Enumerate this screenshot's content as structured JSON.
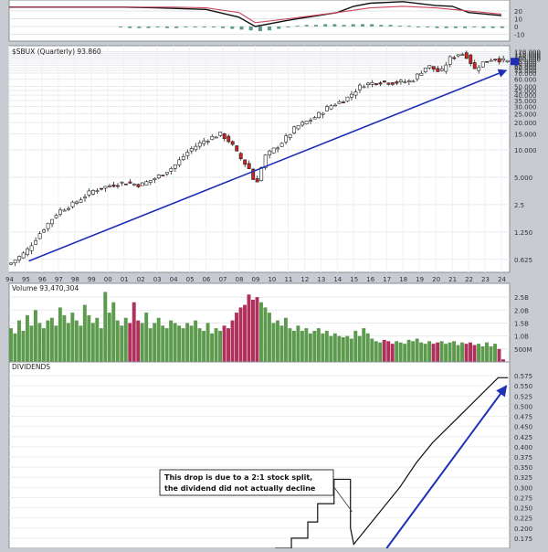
{
  "colors": {
    "up": "#2e8540",
    "down": "#cc2222",
    "vol_up": "#5c9a4e",
    "vol_down": "#b0305c",
    "macd_line": "#111111",
    "macd_signal": "#c8455a",
    "histogram": "#5c9a84",
    "trend": "#1f2fb8",
    "dividend": "#111111"
  },
  "chart_data": [
    {
      "type": "line",
      "panel": "macd",
      "axis_labels": [
        "20",
        "10",
        "0",
        "-10"
      ],
      "series": [
        {
          "x": [
            1994.0,
            2001.0,
            2003.0,
            2006.0,
            2008.0,
            2009.0,
            2011.0,
            2014.0,
            2015.0,
            2016.0,
            2018.0,
            2020.0,
            2021.0,
            2022.0,
            2024.0
          ],
          "values": [
            25,
            25,
            24,
            22,
            12,
            0,
            8,
            18,
            26,
            30,
            32,
            27,
            26,
            18,
            14
          ],
          "color_key": "macd_line"
        },
        {
          "x": [
            1994.0,
            2001.0,
            2004.0,
            2006.0,
            2008.0,
            2009.0,
            2011.0,
            2014.0,
            2016.0,
            2018.0,
            2020.0,
            2021.0,
            2022.0,
            2024.0
          ],
          "values": [
            25,
            25,
            25,
            24,
            18,
            5,
            10,
            18,
            24,
            26,
            24,
            22,
            20,
            16
          ],
          "color_key": "macd_signal"
        }
      ],
      "histogram": [
        -1,
        -2,
        -2,
        -2,
        -1,
        -2,
        -2,
        -1,
        -1,
        -1,
        -1,
        -2,
        -3,
        -4,
        -5,
        -6,
        -5,
        -3,
        0,
        1,
        2,
        2,
        3,
        3,
        2,
        3,
        3,
        3,
        2,
        2,
        1,
        1,
        0,
        -1,
        -2,
        -2,
        -2,
        -2,
        -1,
        -2,
        -2,
        -2
      ]
    },
    {
      "type": "candlestick",
      "panel": "price",
      "legend": "$SBUX (Quarterly) 93.860",
      "y_scale": "log",
      "ylim": [
        0.45,
        140
      ],
      "xlim": [
        1994.0,
        2024.5
      ],
      "x_tick_labels": [
        "94",
        "95",
        "96",
        "97",
        "98",
        "99",
        "00",
        "01",
        "02",
        "03",
        "04",
        "05",
        "06",
        "07",
        "08",
        "09",
        "10",
        "11",
        "12",
        "13",
        "14",
        "15",
        "16",
        "17",
        "18",
        "19",
        "20",
        "21",
        "22",
        "23",
        "24"
      ],
      "y_tick_labels": [
        "0.625",
        "1.250",
        "2.5",
        "5.000",
        "10.000",
        "15.000",
        "20.000",
        "25.000",
        "30.000",
        "35.000",
        "40.000",
        "45.000",
        "50.000",
        "60.000",
        "70.000",
        "75.000",
        "80.000",
        "85.000",
        "90.000",
        "95.000",
        "100.000",
        "105.000",
        "110.000",
        "115.000",
        "120.000"
      ],
      "close_path": [
        [
          1994.0,
          0.55
        ],
        [
          1995.0,
          0.75
        ],
        [
          1996.0,
          1.3
        ],
        [
          1997.0,
          2.1
        ],
        [
          1998.0,
          2.6
        ],
        [
          1999.0,
          3.5
        ],
        [
          2000.0,
          4.0
        ],
        [
          2001.0,
          4.4
        ],
        [
          2002.0,
          4.1
        ],
        [
          2003.0,
          5.0
        ],
        [
          2004.0,
          6.5
        ],
        [
          2005.0,
          10.0
        ],
        [
          2006.0,
          13.0
        ],
        [
          2006.9,
          15.0
        ],
        [
          2007.5,
          12.0
        ],
        [
          2008.0,
          8.5
        ],
        [
          2008.7,
          6.0
        ],
        [
          2009.0,
          4.0
        ],
        [
          2009.6,
          8.5
        ],
        [
          2010.5,
          11.5
        ],
        [
          2011.5,
          18.0
        ],
        [
          2012.5,
          22.0
        ],
        [
          2013.5,
          30.0
        ],
        [
          2014.5,
          36.0
        ],
        [
          2015.5,
          52.0
        ],
        [
          2016.5,
          56.0
        ],
        [
          2017.5,
          55.0
        ],
        [
          2018.5,
          57.0
        ],
        [
          2019.5,
          85.0
        ],
        [
          2020.3,
          70.0
        ],
        [
          2020.8,
          100.0
        ],
        [
          2021.5,
          117.0
        ],
        [
          2022.0,
          105.0
        ],
        [
          2022.3,
          75.0
        ],
        [
          2022.8,
          90.0
        ],
        [
          2023.5,
          102.0
        ],
        [
          2024.3,
          93.86
        ]
      ],
      "trendline": [
        [
          1995.2,
          0.6
        ],
        [
          2024.3,
          75.0
        ]
      ],
      "last_value": 93.86
    },
    {
      "type": "bar",
      "panel": "volume",
      "legend": "Volume 93,470,304",
      "y_tick_labels": [
        "2.5B",
        "2.0B",
        "1.5B",
        "1.0B",
        "500M"
      ],
      "ylim": [
        0,
        2.75
      ],
      "x": [
        1994.0,
        1994.25,
        1994.5,
        1994.75,
        1995.0,
        1995.25,
        1995.5,
        1995.75,
        1996.0,
        1996.25,
        1996.5,
        1996.75,
        1997.0,
        1997.25,
        1997.5,
        1997.75,
        1998.0,
        1998.25,
        1998.5,
        1998.75,
        1999.0,
        1999.25,
        1999.5,
        1999.75,
        2000.0,
        2000.25,
        2000.5,
        2000.75,
        2001.0,
        2001.25,
        2001.5,
        2001.75,
        2002.0,
        2002.25,
        2002.5,
        2002.75,
        2003.0,
        2003.25,
        2003.5,
        2003.75,
        2004.0,
        2004.25,
        2004.5,
        2004.75,
        2005.0,
        2005.25,
        2005.5,
        2005.75,
        2006.0,
        2006.25,
        2006.5,
        2006.75,
        2007.0,
        2007.25,
        2007.5,
        2007.75,
        2008.0,
        2008.25,
        2008.5,
        2008.75,
        2009.0,
        2009.25,
        2009.5,
        2009.75,
        2010.0,
        2010.25,
        2010.5,
        2010.75,
        2011.0,
        2011.25,
        2011.5,
        2011.75,
        2012.0,
        2012.25,
        2012.5,
        2012.75,
        2013.0,
        2013.25,
        2013.5,
        2013.75,
        2014.0,
        2014.25,
        2014.5,
        2014.75,
        2015.0,
        2015.25,
        2015.5,
        2015.75,
        2016.0,
        2016.25,
        2016.5,
        2016.75,
        2017.0,
        2017.25,
        2017.5,
        2017.75,
        2018.0,
        2018.25,
        2018.5,
        2018.75,
        2019.0,
        2019.25,
        2019.5,
        2019.75,
        2020.0,
        2020.25,
        2020.5,
        2020.75,
        2021.0,
        2021.25,
        2021.5,
        2021.75,
        2022.0,
        2022.25,
        2022.5,
        2022.75,
        2023.0,
        2023.25,
        2023.5,
        2023.75,
        2024.0
      ],
      "values": [
        1.3,
        1.1,
        1.6,
        1.2,
        1.8,
        1.4,
        2.0,
        1.5,
        1.3,
        1.6,
        1.7,
        1.4,
        2.1,
        1.8,
        1.5,
        1.9,
        1.6,
        1.4,
        2.2,
        1.8,
        1.5,
        1.7,
        1.3,
        2.7,
        1.9,
        2.3,
        1.6,
        1.4,
        1.7,
        1.5,
        2.3,
        1.6,
        1.5,
        1.9,
        1.3,
        1.5,
        1.7,
        1.4,
        1.3,
        1.6,
        1.5,
        1.4,
        1.3,
        1.5,
        1.4,
        1.6,
        1.3,
        1.2,
        1.5,
        1.1,
        1.3,
        1.2,
        1.4,
        1.3,
        1.6,
        1.9,
        2.1,
        2.2,
        2.6,
        2.4,
        2.5,
        2.3,
        2.1,
        1.9,
        1.5,
        1.6,
        1.4,
        1.7,
        1.3,
        1.2,
        1.4,
        1.2,
        1.3,
        1.1,
        1.2,
        1.3,
        1.1,
        1.2,
        1.0,
        1.1,
        1.0,
        0.95,
        1.0,
        0.9,
        1.2,
        1.0,
        1.3,
        1.1,
        0.9,
        0.8,
        0.75,
        0.85,
        0.8,
        0.7,
        0.8,
        0.75,
        0.7,
        0.85,
        0.8,
        0.9,
        0.75,
        0.7,
        0.8,
        0.7,
        0.75,
        0.8,
        0.7,
        0.75,
        0.8,
        0.65,
        0.75,
        0.7,
        0.75,
        0.65,
        0.7,
        0.6,
        0.75,
        0.6,
        0.7,
        0.5,
        0.1
      ]
    },
    {
      "type": "line",
      "panel": "dividends",
      "legend": "DIVIDENDS",
      "line_shape": "step",
      "y_tick_labels": [
        "0.575",
        "0.550",
        "0.525",
        "0.500",
        "0.475",
        "0.450",
        "0.425",
        "0.400",
        "0.375",
        "0.350",
        "0.325",
        "0.300",
        "0.275",
        "0.250",
        "0.225",
        "0.200",
        "0.175"
      ],
      "ylim": [
        0.15,
        0.6
      ],
      "series": [
        {
          "x": [
            2010.2,
            2011.2,
            2011.2,
            2012.2,
            2012.2,
            2012.8,
            2012.8,
            2013.8,
            2013.8,
            2014.8,
            2014.8,
            2014.8,
            2015.0,
            2015.0,
            2015.8,
            2015.8,
            2016.8,
            2016.8,
            2017.8,
            2017.8,
            2018.8,
            2018.8,
            2019.8,
            2019.8,
            2020.8,
            2020.8,
            2021.8,
            2021.8,
            2022.8,
            2022.8,
            2023.8,
            2023.8,
            2024.4
          ],
          "values": [
            0.15,
            0.15,
            0.175,
            0.175,
            0.215,
            0.215,
            0.26,
            0.26,
            0.32,
            0.32,
            0.32,
            0.2,
            0.16,
            0.16,
            0.2,
            0.2,
            0.25,
            0.25,
            0.3,
            0.3,
            0.36,
            0.36,
            0.41,
            0.41,
            0.45,
            0.45,
            0.49,
            0.49,
            0.53,
            0.53,
            0.57,
            0.57,
            0.57
          ]
        }
      ],
      "trendline": [
        [
          2017.0,
          0.15
        ],
        [
          2024.3,
          0.55
        ]
      ],
      "annotation": "This drop is due to a 2:1 stock split, the dividend did not actually decline"
    }
  ]
}
